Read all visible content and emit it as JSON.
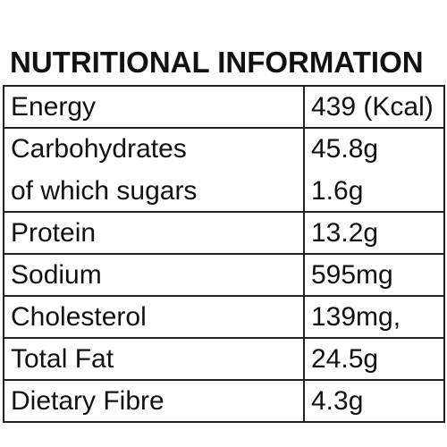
{
  "title": "NUTRITIONAL INFORMATION",
  "rows": [
    {
      "label": "Energy",
      "value": "439 (Kcal)"
    },
    {
      "label": "Carbohydrates",
      "value": "45.8g",
      "sub_label": "of which sugars",
      "sub_value": "1.6g"
    },
    {
      "label": "Protein",
      "value": "13.2g"
    },
    {
      "label": "Sodium",
      "value": "595mg"
    },
    {
      "label": "Cholesterol",
      "value": "139mg,"
    },
    {
      "label": "Total Fat",
      "value": "24.5g"
    },
    {
      "label": "Dietary Fibre",
      "value": "4.3g"
    }
  ]
}
